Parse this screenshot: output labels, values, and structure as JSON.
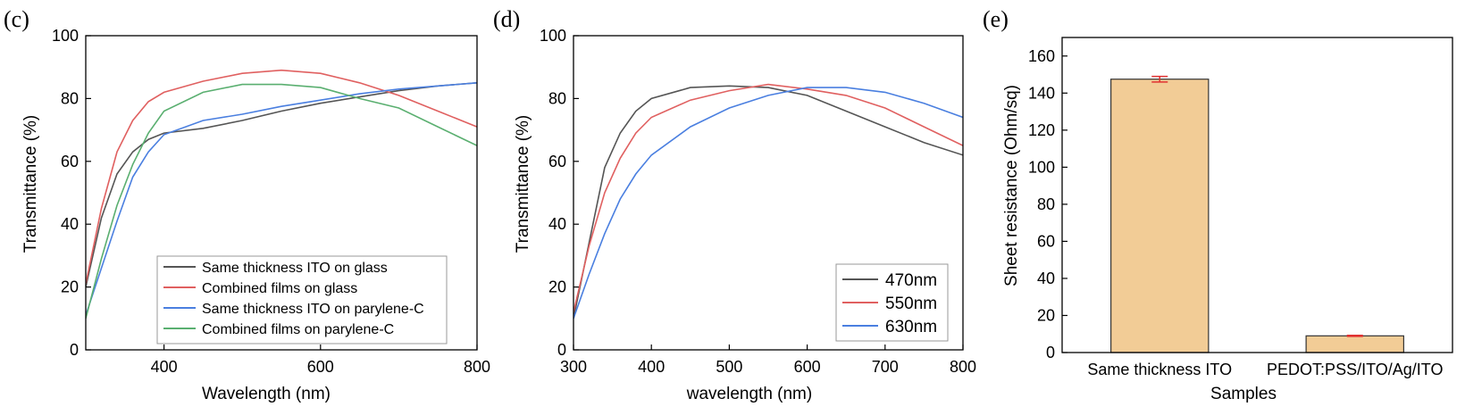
{
  "chart_data": [
    {
      "panel_label": "(c)",
      "type": "line",
      "xlabel": "Wavelength (nm)",
      "ylabel": "Transmittance (%)",
      "xlim": [
        300,
        800
      ],
      "ylim": [
        0,
        100
      ],
      "xticks": [
        400,
        600,
        800
      ],
      "yticks": [
        0,
        20,
        40,
        60,
        80,
        100
      ],
      "legend_position": "bottom-right",
      "series": [
        {
          "name": "Same thickness ITO on glass",
          "color": "#555555",
          "x": [
            300,
            320,
            340,
            360,
            380,
            400,
            450,
            500,
            550,
            600,
            650,
            700,
            750,
            800
          ],
          "y": [
            20,
            42,
            56,
            63,
            67,
            69,
            70.5,
            73,
            76,
            78.5,
            80.5,
            82.5,
            84,
            85
          ]
        },
        {
          "name": "Combined films on glass",
          "color": "#e06060",
          "x": [
            300,
            320,
            340,
            360,
            380,
            400,
            450,
            500,
            550,
            600,
            650,
            700,
            750,
            800
          ],
          "y": [
            21,
            45,
            63,
            73,
            79,
            82,
            85.5,
            88,
            89,
            88,
            85,
            81,
            76,
            71
          ]
        },
        {
          "name": "Same thickness ITO on parylene-C",
          "color": "#4a7fe0",
          "x": [
            300,
            320,
            340,
            360,
            380,
            400,
            450,
            500,
            550,
            600,
            650,
            700,
            750,
            800
          ],
          "y": [
            11,
            26,
            41,
            55,
            63,
            68.5,
            73,
            75,
            77.5,
            79.5,
            81.5,
            83,
            84,
            85
          ]
        },
        {
          "name": "Combined films on parylene-C",
          "color": "#5aaf70",
          "x": [
            300,
            320,
            340,
            360,
            380,
            400,
            450,
            500,
            550,
            600,
            650,
            700,
            750,
            800
          ],
          "y": [
            10,
            29,
            46,
            59,
            69,
            76,
            82,
            84.5,
            84.5,
            83.5,
            80,
            77,
            71,
            65
          ]
        }
      ]
    },
    {
      "panel_label": "(d)",
      "type": "line",
      "xlabel": "wavelength (nm)",
      "ylabel": "Transmittance (%)",
      "xlim": [
        300,
        800
      ],
      "ylim": [
        0,
        100
      ],
      "xticks": [
        300,
        400,
        500,
        600,
        700,
        800
      ],
      "yticks": [
        0,
        20,
        40,
        60,
        80,
        100
      ],
      "legend_position": "bottom-right",
      "series": [
        {
          "name": "470nm",
          "color": "#555555",
          "x": [
            300,
            320,
            340,
            360,
            380,
            400,
            450,
            500,
            550,
            600,
            650,
            700,
            750,
            800
          ],
          "y": [
            10,
            34,
            58,
            69,
            76,
            80,
            83.5,
            84,
            83.5,
            81,
            76,
            71,
            66,
            62
          ]
        },
        {
          "name": "550nm",
          "color": "#e06060",
          "x": [
            300,
            320,
            340,
            360,
            380,
            400,
            450,
            500,
            550,
            600,
            650,
            700,
            750,
            800
          ],
          "y": [
            12,
            33,
            50,
            61,
            69,
            74,
            79.5,
            82.5,
            84.5,
            83,
            81,
            77,
            71,
            65
          ]
        },
        {
          "name": "630nm",
          "color": "#4a7fe0",
          "x": [
            300,
            320,
            340,
            360,
            380,
            400,
            450,
            500,
            550,
            600,
            650,
            700,
            750,
            800
          ],
          "y": [
            10,
            24,
            37,
            48,
            56,
            62,
            71,
            77,
            81,
            83.5,
            83.5,
            82,
            78.5,
            74
          ]
        }
      ]
    },
    {
      "panel_label": "(e)",
      "type": "bar",
      "xlabel": "Samples",
      "ylabel": "Sheet resistance (Ohm/sq)",
      "ylim": [
        0,
        170
      ],
      "yticks": [
        0,
        20,
        40,
        60,
        80,
        100,
        120,
        140,
        160
      ],
      "categories": [
        "Same thickness ITO",
        "PEDOT:PSS/ITO/Ag/ITO"
      ],
      "values": [
        147.5,
        9
      ],
      "errors": [
        1.5,
        0.3
      ],
      "bar_color": "#f2cc96",
      "error_color": "#e03030"
    }
  ]
}
